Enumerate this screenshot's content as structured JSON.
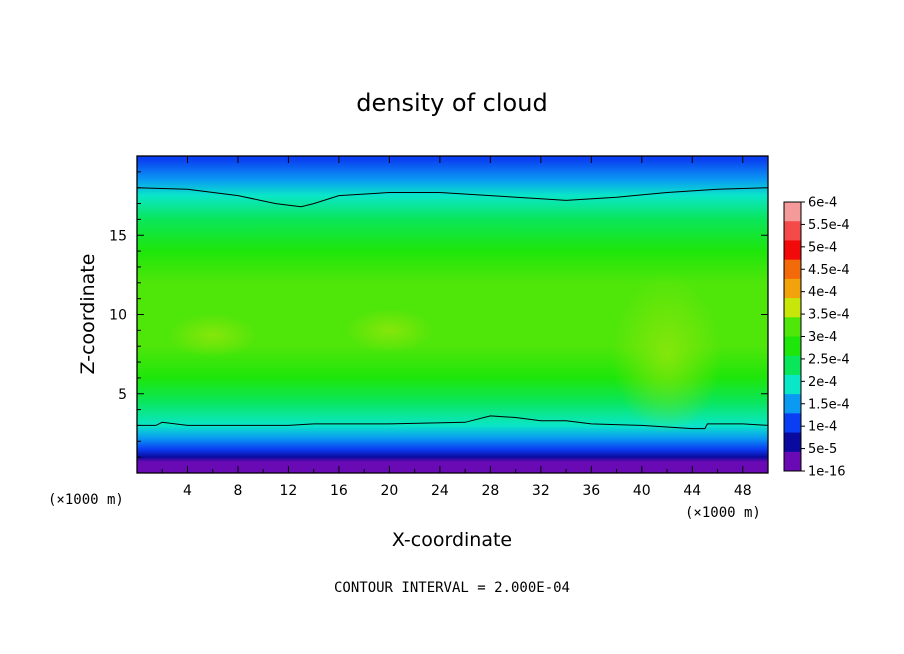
{
  "chart_data": {
    "type": "heatmap",
    "title": "density of cloud",
    "xlabel": "X-coordinate",
    "ylabel": "Z-coordinate",
    "x_unit": "(×1000 m)",
    "z_unit": "(×1000 m)",
    "xlim": [
      0,
      50
    ],
    "ylim": [
      0,
      20
    ],
    "x_ticks": [
      4,
      8,
      12,
      16,
      20,
      24,
      28,
      32,
      36,
      40,
      44,
      48
    ],
    "y_ticks": [
      5,
      10,
      15
    ],
    "contour_interval_text": "CONTOUR INTERVAL = 2.000E-04",
    "colorbar": {
      "labels": [
        "6e-4",
        "5.5e-4",
        "5e-4",
        "4.5e-4",
        "4e-4",
        "3.5e-4",
        "3e-4",
        "2.5e-4",
        "2e-4",
        "1.5e-4",
        "1e-4",
        "5e-5",
        "1e-16"
      ],
      "colors": [
        "#f49a9a",
        "#f44a4a",
        "#f20a0a",
        "#f26a0a",
        "#f2a20a",
        "#c8e60a",
        "#4fe60a",
        "#1ee60a",
        "#0ae65a",
        "#0ae6c8",
        "#0a9af2",
        "#0a3ef2",
        "#0a0a9e",
        "#6a0ab4"
      ]
    },
    "profile": {
      "z": [
        0,
        0.7,
        1.0,
        1.5,
        2.2,
        3.0,
        4.5,
        6,
        8,
        10,
        12,
        14,
        16,
        17.5,
        18.5,
        19.8
      ],
      "density": [
        0,
        2e-05,
        5e-05,
        0.0001,
        0.00015,
        0.0002,
        0.00025,
        0.0003,
        0.00034,
        0.00035,
        0.00033,
        0.00028,
        0.00023,
        0.0002,
        0.00015,
        0.0001
      ]
    },
    "contours": [
      {
        "level": 0.0002,
        "points": [
          [
            0,
            18.0
          ],
          [
            4,
            17.9
          ],
          [
            8,
            17.5
          ],
          [
            11,
            17.0
          ],
          [
            13,
            16.8
          ],
          [
            14,
            17.0
          ],
          [
            16,
            17.5
          ],
          [
            20,
            17.7
          ],
          [
            24,
            17.7
          ],
          [
            28,
            17.5
          ],
          [
            32,
            17.3
          ],
          [
            34,
            17.2
          ],
          [
            38,
            17.4
          ],
          [
            42,
            17.7
          ],
          [
            46,
            17.9
          ],
          [
            50,
            18.0
          ]
        ]
      },
      {
        "level": 0.0002,
        "points": [
          [
            0,
            3.0
          ],
          [
            1.5,
            3.0
          ],
          [
            2,
            3.2
          ],
          [
            4,
            3.0
          ],
          [
            8,
            3.0
          ],
          [
            12,
            3.0
          ],
          [
            14,
            3.1
          ],
          [
            20,
            3.1
          ],
          [
            26,
            3.2
          ],
          [
            28,
            3.6
          ],
          [
            30,
            3.5
          ],
          [
            32,
            3.3
          ],
          [
            34,
            3.3
          ],
          [
            36,
            3.1
          ],
          [
            40,
            3.0
          ],
          [
            44,
            2.8
          ],
          [
            45,
            2.8
          ],
          [
            45.2,
            3.1
          ],
          [
            48,
            3.1
          ],
          [
            50,
            3.0
          ]
        ]
      }
    ],
    "features": [
      {
        "kind": "core",
        "x": 42,
        "z": 7.5,
        "value": 0.00038
      },
      {
        "kind": "core",
        "x": 6,
        "z": 8.7,
        "value": 0.00036
      },
      {
        "kind": "core",
        "x": 20,
        "z": 9.0,
        "value": 0.00036
      }
    ]
  }
}
